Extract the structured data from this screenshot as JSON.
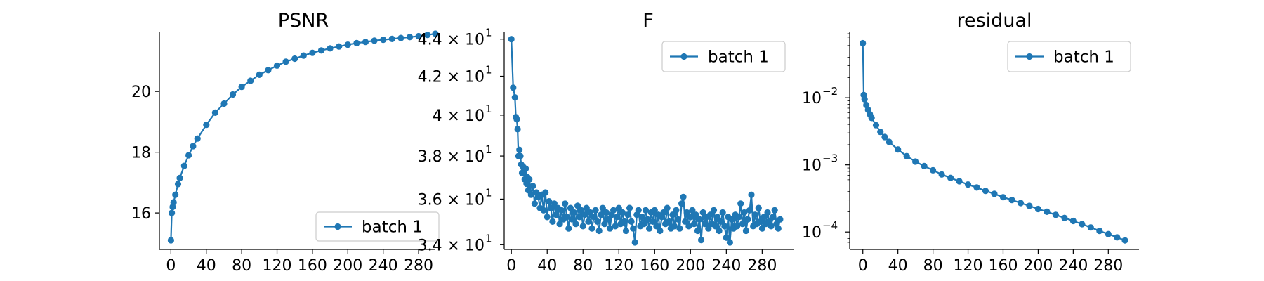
{
  "colors": {
    "series": "#1f77b4",
    "axes": "#000000",
    "legend_border": "#cccccc"
  },
  "chart_data": [
    {
      "type": "line",
      "title": "PSNR",
      "xlabel": "",
      "ylabel": "",
      "y_scale": "linear",
      "xlim": [
        -13,
        299
      ],
      "ylim": [
        14.8,
        21.9
      ],
      "x_ticks": [
        0,
        40,
        80,
        120,
        160,
        200,
        240,
        280
      ],
      "y_ticks": [
        16,
        18,
        20
      ],
      "y_tick_labels": [
        "16",
        "18",
        "20"
      ],
      "legend": {
        "location": "lower-right",
        "entries": [
          "batch 1"
        ]
      },
      "grid": false,
      "series": [
        {
          "name": "batch 1",
          "marker": "circle",
          "points": [
            [
              0,
              15.1
            ],
            [
              1,
              16.0
            ],
            [
              2,
              16.2
            ],
            [
              3,
              16.35
            ],
            [
              5,
              16.6
            ],
            [
              8,
              16.95
            ],
            [
              10,
              17.15
            ],
            [
              15,
              17.55
            ],
            [
              20,
              17.9
            ],
            [
              25,
              18.2
            ],
            [
              30,
              18.45
            ],
            [
              40,
              18.9
            ],
            [
              50,
              19.3
            ],
            [
              60,
              19.6
            ],
            [
              70,
              19.9
            ],
            [
              80,
              20.15
            ],
            [
              90,
              20.35
            ],
            [
              100,
              20.55
            ],
            [
              110,
              20.7
            ],
            [
              120,
              20.85
            ],
            [
              130,
              20.98
            ],
            [
              140,
              21.08
            ],
            [
              150,
              21.18
            ],
            [
              160,
              21.27
            ],
            [
              170,
              21.35
            ],
            [
              180,
              21.42
            ],
            [
              190,
              21.48
            ],
            [
              200,
              21.54
            ],
            [
              210,
              21.59
            ],
            [
              220,
              21.63
            ],
            [
              230,
              21.67
            ],
            [
              240,
              21.7
            ],
            [
              250,
              21.73
            ],
            [
              260,
              21.76
            ],
            [
              270,
              21.79
            ],
            [
              280,
              21.82
            ],
            [
              290,
              21.86
            ],
            [
              299,
              21.9
            ]
          ]
        }
      ]
    },
    {
      "type": "line",
      "title": "F",
      "xlabel": "",
      "ylabel": "",
      "y_scale": "log",
      "xlim": [
        -8,
        315
      ],
      "ylim": [
        33.8,
        44.3
      ],
      "x_ticks": [
        0,
        40,
        80,
        120,
        160,
        200,
        240,
        280
      ],
      "y_ticks": [
        34,
        36,
        38,
        40,
        42,
        44
      ],
      "y_tick_mantissas": [
        "3.4",
        "3.6",
        "3.8",
        "4",
        "4.2",
        "4.4"
      ],
      "y_tick_multiplier": "× 10",
      "y_tick_exponent": "1",
      "legend": {
        "location": "top-right",
        "entries": [
          "batch 1"
        ]
      },
      "grid": false,
      "series": [
        {
          "name": "batch 1",
          "marker": "circle",
          "points": [
            [
              0,
              44.0
            ],
            [
              2,
              41.4
            ],
            [
              4,
              40.9
            ],
            [
              5,
              39.9
            ],
            [
              6,
              39.8
            ],
            [
              7,
              39.3
            ],
            [
              8,
              38.0
            ],
            [
              9,
              38.3
            ],
            [
              10,
              38.0
            ],
            [
              11,
              37.6
            ],
            [
              12,
              37.2
            ],
            [
              13,
              37.5
            ],
            [
              14,
              37.3
            ],
            [
              15,
              36.9
            ],
            [
              16,
              37.4
            ],
            [
              17,
              36.7
            ],
            [
              18,
              37.0
            ],
            [
              19,
              36.4
            ],
            [
              20,
              36.9
            ],
            [
              22,
              36.2
            ],
            [
              24,
              36.6
            ],
            [
              26,
              35.8
            ],
            [
              28,
              36.3
            ],
            [
              30,
              36.1
            ],
            [
              32,
              35.6
            ],
            [
              34,
              36.2
            ],
            [
              36,
              35.5
            ],
            [
              38,
              36.3
            ],
            [
              40,
              35.2
            ],
            [
              42,
              35.9
            ],
            [
              44,
              35.6
            ],
            [
              46,
              35.0
            ],
            [
              48,
              35.8
            ],
            [
              50,
              35.3
            ],
            [
              52,
              35.6
            ],
            [
              54,
              34.9
            ],
            [
              56,
              35.5
            ],
            [
              58,
              35.1
            ],
            [
              60,
              35.8
            ],
            [
              62,
              35.2
            ],
            [
              64,
              34.7
            ],
            [
              66,
              35.6
            ],
            [
              68,
              35.1
            ],
            [
              70,
              35.4
            ],
            [
              72,
              34.9
            ],
            [
              74,
              35.7
            ],
            [
              76,
              35.2
            ],
            [
              78,
              35.5
            ],
            [
              80,
              34.8
            ],
            [
              82,
              35.3
            ],
            [
              84,
              35.6
            ],
            [
              86,
              35.0
            ],
            [
              88,
              35.4
            ],
            [
              90,
              34.7
            ],
            [
              92,
              35.2
            ],
            [
              94,
              35.5
            ],
            [
              96,
              35.0
            ],
            [
              98,
              34.6
            ],
            [
              100,
              35.3
            ],
            [
              102,
              35.6
            ],
            [
              104,
              34.9
            ],
            [
              106,
              35.4
            ],
            [
              108,
              35.1
            ],
            [
              110,
              34.7
            ],
            [
              112,
              35.3
            ],
            [
              114,
              35.5
            ],
            [
              116,
              34.8
            ],
            [
              118,
              35.2
            ],
            [
              120,
              35.6
            ],
            [
              122,
              34.9
            ],
            [
              124,
              35.4
            ],
            [
              126,
              35.0
            ],
            [
              128,
              34.6
            ],
            [
              130,
              35.3
            ],
            [
              132,
              35.6
            ],
            [
              134,
              35.0
            ],
            [
              136,
              34.7
            ],
            [
              138,
              34.1
            ],
            [
              140,
              35.3
            ],
            [
              142,
              35.5
            ],
            [
              144,
              34.8
            ],
            [
              146,
              35.2
            ],
            [
              148,
              34.9
            ],
            [
              150,
              35.5
            ],
            [
              152,
              35.1
            ],
            [
              154,
              34.7
            ],
            [
              156,
              35.4
            ],
            [
              158,
              35.0
            ],
            [
              160,
              35.5
            ],
            [
              162,
              34.8
            ],
            [
              164,
              35.3
            ],
            [
              166,
              34.6
            ],
            [
              168,
              35.2
            ],
            [
              170,
              35.4
            ],
            [
              172,
              34.9
            ],
            [
              174,
              35.6
            ],
            [
              176,
              35.0
            ],
            [
              178,
              34.7
            ],
            [
              180,
              35.3
            ],
            [
              182,
              34.8
            ],
            [
              184,
              35.5
            ],
            [
              186,
              35.1
            ],
            [
              188,
              34.7
            ],
            [
              190,
              35.8
            ],
            [
              192,
              36.1
            ],
            [
              194,
              35.0
            ],
            [
              196,
              35.4
            ],
            [
              198,
              34.8
            ],
            [
              200,
              35.2
            ],
            [
              202,
              35.5
            ],
            [
              204,
              34.9
            ],
            [
              206,
              35.3
            ],
            [
              208,
              34.6
            ],
            [
              210,
              35.1
            ],
            [
              212,
              34.2
            ],
            [
              214,
              35.4
            ],
            [
              216,
              34.9
            ],
            [
              218,
              35.2
            ],
            [
              220,
              34.7
            ],
            [
              222,
              35.3
            ],
            [
              224,
              34.9
            ],
            [
              226,
              35.5
            ],
            [
              228,
              34.8
            ],
            [
              230,
              35.2
            ],
            [
              232,
              34.6
            ],
            [
              234,
              35.0
            ],
            [
              236,
              35.4
            ],
            [
              238,
              34.8
            ],
            [
              240,
              34.3
            ],
            [
              242,
              35.2
            ],
            [
              244,
              34.1
            ],
            [
              246,
              35.1
            ],
            [
              248,
              34.7
            ],
            [
              250,
              35.3
            ],
            [
              252,
              34.8
            ],
            [
              254,
              35.2
            ],
            [
              256,
              35.8
            ],
            [
              258,
              34.9
            ],
            [
              260,
              35.4
            ],
            [
              262,
              34.6
            ],
            [
              264,
              35.1
            ],
            [
              266,
              35.5
            ],
            [
              268,
              36.2
            ],
            [
              270,
              34.8
            ],
            [
              272,
              35.3
            ],
            [
              274,
              34.9
            ],
            [
              276,
              35.6
            ],
            [
              278,
              35.0
            ],
            [
              280,
              34.7
            ],
            [
              282,
              35.2
            ],
            [
              284,
              34.9
            ],
            [
              286,
              35.4
            ],
            [
              288,
              35.0
            ],
            [
              290,
              34.8
            ],
            [
              292,
              35.2
            ],
            [
              294,
              35.5
            ],
            [
              296,
              34.9
            ],
            [
              298,
              34.7
            ],
            [
              300,
              35.1
            ]
          ]
        }
      ]
    },
    {
      "type": "line",
      "title": "residual",
      "xlabel": "",
      "ylabel": "",
      "y_scale": "log",
      "xlim": [
        -15,
        315
      ],
      "ylim": [
        5.5e-05,
        0.09
      ],
      "x_ticks": [
        0,
        40,
        80,
        120,
        160,
        200,
        240,
        280
      ],
      "y_ticks": [
        0.0001,
        0.001,
        0.01
      ],
      "y_tick_exponents": [
        "−4",
        "−3",
        "−2"
      ],
      "y_tick_base": "10",
      "legend": {
        "location": "top-right",
        "entries": [
          "batch 1"
        ]
      },
      "grid": false,
      "series": [
        {
          "name": "batch 1",
          "marker": "circle",
          "points": [
            [
              0,
              0.065
            ],
            [
              1,
              0.011
            ],
            [
              2,
              0.0095
            ],
            [
              4,
              0.0078
            ],
            [
              6,
              0.0066
            ],
            [
              8,
              0.0057
            ],
            [
              10,
              0.005
            ],
            [
              15,
              0.0039
            ],
            [
              20,
              0.0031
            ],
            [
              25,
              0.0026
            ],
            [
              30,
              0.0022
            ],
            [
              40,
              0.0017
            ],
            [
              50,
              0.00135
            ],
            [
              60,
              0.00112
            ],
            [
              70,
              0.00096
            ],
            [
              80,
              0.00083
            ],
            [
              90,
              0.00072
            ],
            [
              100,
              0.00064
            ],
            [
              110,
              0.00057
            ],
            [
              120,
              0.00051
            ],
            [
              130,
              0.00046
            ],
            [
              140,
              0.00041
            ],
            [
              150,
              0.00037
            ],
            [
              160,
              0.00033
            ],
            [
              170,
              0.0003
            ],
            [
              180,
              0.00027
            ],
            [
              190,
              0.000245
            ],
            [
              200,
              0.00022
            ],
            [
              210,
              0.0002
            ],
            [
              220,
              0.00018
            ],
            [
              230,
              0.000162
            ],
            [
              240,
              0.000146
            ],
            [
              250,
              0.000131
            ],
            [
              260,
              0.000117
            ],
            [
              270,
              0.000104
            ],
            [
              280,
              9.3e-05
            ],
            [
              290,
              8.3e-05
            ],
            [
              299,
              7.5e-05
            ]
          ]
        }
      ]
    }
  ]
}
